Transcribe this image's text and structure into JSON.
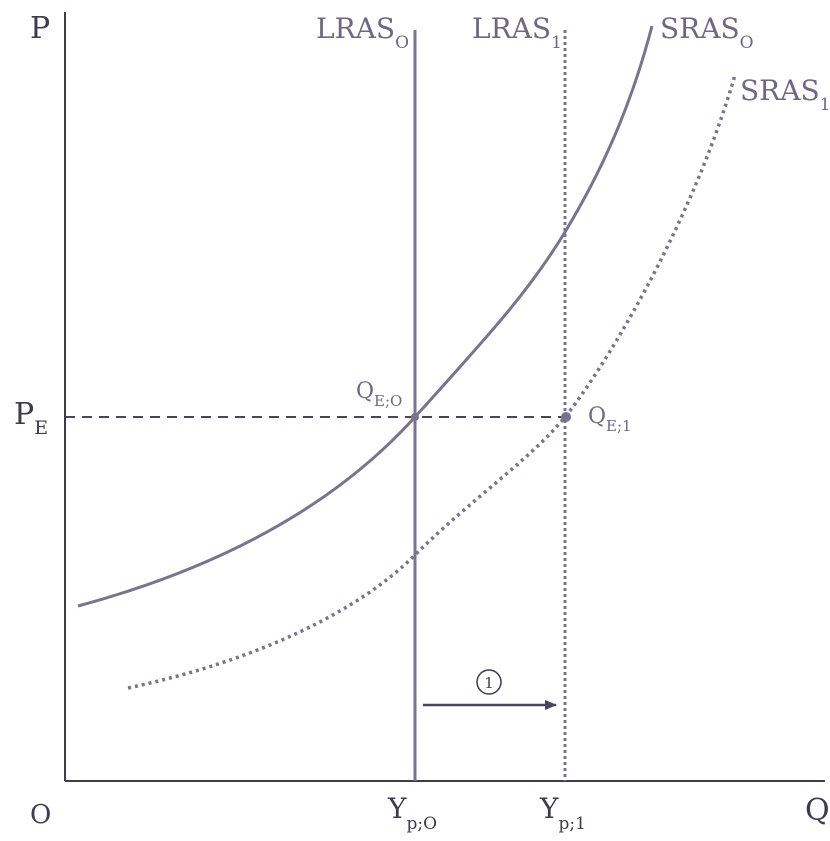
{
  "axes": {
    "y_label": "P",
    "x_label": "Q",
    "origin_label": "O"
  },
  "price_level": {
    "main": "P",
    "sub": "E"
  },
  "curves": {
    "lras0": {
      "main": "LRAS",
      "sub": "O"
    },
    "lras1": {
      "main": "LRAS",
      "sub": "1"
    },
    "sras0": {
      "main": "SRAS",
      "sub": "O"
    },
    "sras1": {
      "main": "SRAS",
      "sub": "1"
    }
  },
  "equilibria": {
    "qe0": {
      "main": "Q",
      "sub": "E;O"
    },
    "qe1": {
      "main": "Q",
      "sub": "E;1"
    }
  },
  "x_ticks": {
    "yp0": {
      "main": "Y",
      "sub": "p;O"
    },
    "yp1": {
      "main": "Y",
      "sub": "p;1"
    }
  },
  "shift_marker": "1",
  "colors": {
    "axis": "#3e3a50",
    "curve": "#7a7390",
    "arrow": "#4a4463"
  }
}
